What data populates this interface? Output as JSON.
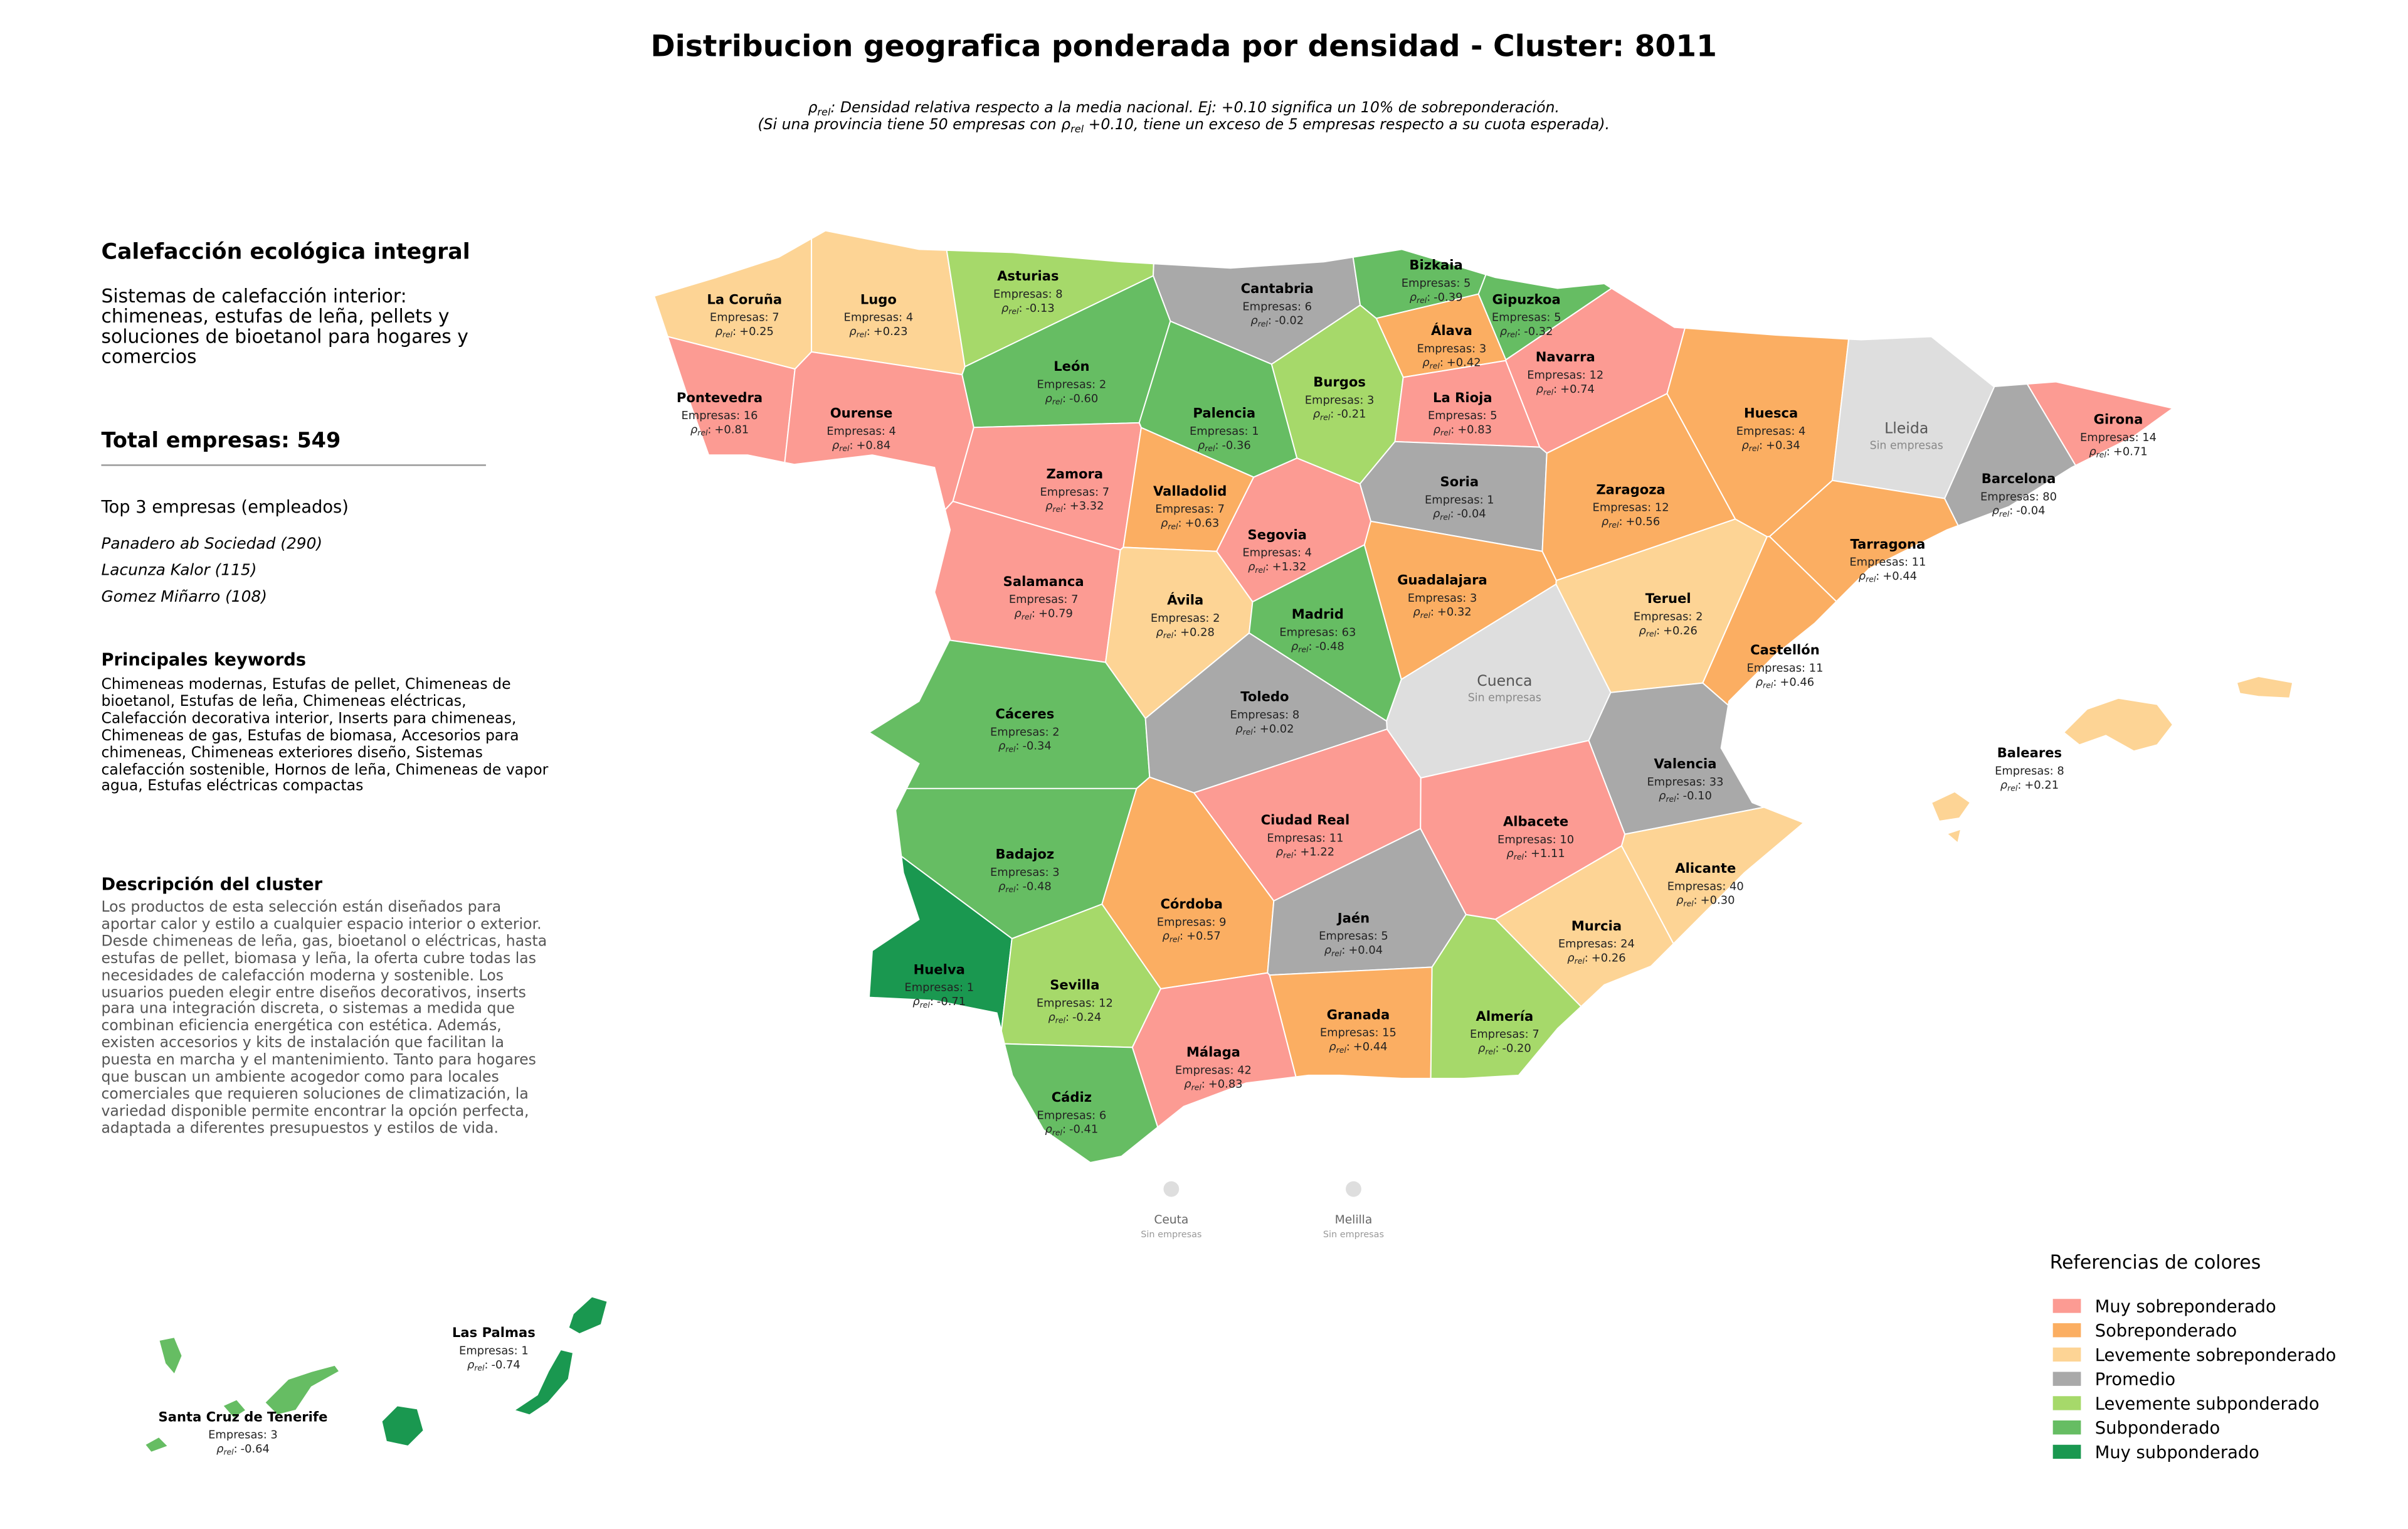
{
  "header": {
    "title": "Distribucion geografica ponderada por densidad - Cluster: 8011",
    "note": {
      "symbol": "ρ",
      "sub": "rel",
      "line1": ": Densidad relativa respecto a la media nacional. Ej: +0.10 significa un 10% de sobreponderación.",
      "line2_start": "(Si una provincia tiene 50 empresas con ",
      "line2_end": " +0.10, tiene un exceso de 5 empresas respecto a su cuota esperada)."
    }
  },
  "sidebar": {
    "title": "Calefacción ecológica integral",
    "summary": "Sistemas de calefacción interior: chimeneas, estufas de leña, pellets y soluciones de bioetanol para hogares y comercios",
    "total": "Total empresas: 549",
    "top_title": "Top 3 empresas (empleados)",
    "top": [
      "Panadero ab Sociedad (290)",
      "Lacunza Kalor (115)",
      "Gomez Miñarro (108)"
    ],
    "keywords_title": "Principales keywords",
    "keywords": "Chimeneas modernas, Estufas de pellet, Chimeneas de bioetanol, Estufas de leña, Chimeneas eléctricas, Calefacción decorativa interior, Inserts para chimeneas, Chimeneas de gas, Estufas de biomasa, Accesorios para chimeneas, Chimeneas exteriores diseño, Sistemas calefacción sostenible, Hornos de leña, Chimeneas de vapor agua, Estufas eléctricas compactas",
    "description_title": "Descripción del cluster",
    "description": "Los productos de esta selección están diseñados para aportar calor y estilo a cualquier espacio interior o exterior. Desde chimeneas de leña, gas, bioetanol o eléctricas, hasta estufas de pellet, biomasa y leña, la oferta cubre todas las necesidades de calefacción moderna y sostenible. Los usuarios pueden elegir entre diseños decorativos, inserts para una integración discreta, o sistemas a medida que combinan eficiencia energética con estética. Además, existen accesorios y kits de instalación que facilitan la puesta en marcha y el mantenimiento. Tanto para hogares que buscan un ambiente acogedor como para locales comerciales que requieren soluciones de climatización, la variedad disponible permite encontrar la opción perfecta, adaptada a diferentes presupuestos y estilos de vida."
  },
  "map": {
    "rho_symbol": "ρ",
    "rho_sub": "rel",
    "rho_sep": ":",
    "no_data": "Sin empresas",
    "no_data_color": "#dedede",
    "provinces": [
      {
        "name": "La Coruña",
        "companies": "Empresas: 7",
        "rho": "+0.25",
        "color": "#fdd495"
      },
      {
        "name": "Lugo",
        "companies": "Empresas: 4",
        "rho": "+0.23",
        "color": "#fdd495"
      },
      {
        "name": "Asturias",
        "companies": "Empresas: 8",
        "rho": "-0.13",
        "color": "#a6d96a"
      },
      {
        "name": "Cantabria",
        "companies": "Empresas: 6",
        "rho": "-0.02",
        "color": "#a9a9a9"
      },
      {
        "name": "Bizkaia",
        "companies": "Empresas: 5",
        "rho": "-0.39",
        "color": "#66bd63"
      },
      {
        "name": "Gipuzkoa",
        "companies": "Empresas: 5",
        "rho": "-0.32",
        "color": "#66bd63"
      },
      {
        "name": "Álava",
        "companies": "Empresas: 3",
        "rho": "+0.42",
        "color": "#fbae62"
      },
      {
        "name": "Navarra",
        "companies": "Empresas: 12",
        "rho": "+0.74",
        "color": "#fc9b93"
      },
      {
        "name": "Pontevedra",
        "companies": "Empresas: 16",
        "rho": "+0.81",
        "color": "#fc9b93"
      },
      {
        "name": "Ourense",
        "companies": "Empresas: 4",
        "rho": "+0.84",
        "color": "#fc9b93"
      },
      {
        "name": "León",
        "companies": "Empresas: 2",
        "rho": "-0.60",
        "color": "#66bd63"
      },
      {
        "name": "Palencia",
        "companies": "Empresas: 1",
        "rho": "-0.36",
        "color": "#66bd63"
      },
      {
        "name": "Burgos",
        "companies": "Empresas: 3",
        "rho": "-0.21",
        "color": "#a6d96a"
      },
      {
        "name": "La Rioja",
        "companies": "Empresas: 5",
        "rho": "+0.83",
        "color": "#fc9b93"
      },
      {
        "name": "Huesca",
        "companies": "Empresas: 4",
        "rho": "+0.34",
        "color": "#fbae62"
      },
      {
        "name": "Girona",
        "companies": "Empresas: 14",
        "rho": "+0.71",
        "color": "#fc9b93"
      },
      {
        "name": "Lleida"
      },
      {
        "name": "Barcelona",
        "companies": "Empresas: 80",
        "rho": "-0.04",
        "color": "#a9a9a9"
      },
      {
        "name": "Zamora",
        "companies": "Empresas: 7",
        "rho": "+3.32",
        "color": "#fc9b93"
      },
      {
        "name": "Valladolid",
        "companies": "Empresas: 7",
        "rho": "+0.63",
        "color": "#fbae62"
      },
      {
        "name": "Soria",
        "companies": "Empresas: 1",
        "rho": "-0.04",
        "color": "#a9a9a9"
      },
      {
        "name": "Zaragoza",
        "companies": "Empresas: 12",
        "rho": "+0.56",
        "color": "#fbae62"
      },
      {
        "name": "Segovia",
        "companies": "Empresas: 4",
        "rho": "+1.32",
        "color": "#fc9b93"
      },
      {
        "name": "Tarragona",
        "companies": "Empresas: 11",
        "rho": "+0.44",
        "color": "#fbae62"
      },
      {
        "name": "Salamanca",
        "companies": "Empresas: 7",
        "rho": "+0.79",
        "color": "#fc9b93"
      },
      {
        "name": "Ávila",
        "companies": "Empresas: 2",
        "rho": "+0.28",
        "color": "#fdd495"
      },
      {
        "name": "Madrid",
        "companies": "Empresas: 63",
        "rho": "-0.48",
        "color": "#66bd63"
      },
      {
        "name": "Guadalajara",
        "companies": "Empresas: 3",
        "rho": "+0.32",
        "color": "#fbae62"
      },
      {
        "name": "Teruel",
        "companies": "Empresas: 2",
        "rho": "+0.26",
        "color": "#fdd495"
      },
      {
        "name": "Castellón",
        "companies": "Empresas: 11",
        "rho": "+0.46",
        "color": "#fbae62"
      },
      {
        "name": "Cuenca"
      },
      {
        "name": "Cáceres",
        "companies": "Empresas: 2",
        "rho": "-0.34",
        "color": "#66bd63"
      },
      {
        "name": "Toledo",
        "companies": "Empresas: 8",
        "rho": "+0.02",
        "color": "#a9a9a9"
      },
      {
        "name": "Valencia",
        "companies": "Empresas: 33",
        "rho": "-0.10",
        "color": "#a9a9a9"
      },
      {
        "name": "Baleares",
        "companies": "Empresas: 8",
        "rho": "+0.21",
        "color": "#fdd495"
      },
      {
        "name": "Ciudad Real",
        "companies": "Empresas: 11",
        "rho": "+1.22",
        "color": "#fc9b93"
      },
      {
        "name": "Albacete",
        "companies": "Empresas: 10",
        "rho": "+1.11",
        "color": "#fc9b93"
      },
      {
        "name": "Badajoz",
        "companies": "Empresas: 3",
        "rho": "-0.48",
        "color": "#66bd63"
      },
      {
        "name": "Alicante",
        "companies": "Empresas: 40",
        "rho": "+0.30",
        "color": "#fdd495"
      },
      {
        "name": "Córdoba",
        "companies": "Empresas: 9",
        "rho": "+0.57",
        "color": "#fbae62"
      },
      {
        "name": "Jaén",
        "companies": "Empresas: 5",
        "rho": "+0.04",
        "color": "#a9a9a9"
      },
      {
        "name": "Murcia",
        "companies": "Empresas: 24",
        "rho": "+0.26",
        "color": "#fdd495"
      },
      {
        "name": "Huelva",
        "companies": "Empresas: 1",
        "rho": "-0.71",
        "color": "#1a9850"
      },
      {
        "name": "Sevilla",
        "companies": "Empresas: 12",
        "rho": "-0.24",
        "color": "#a6d96a"
      },
      {
        "name": "Granada",
        "companies": "Empresas: 15",
        "rho": "+0.44",
        "color": "#fbae62"
      },
      {
        "name": "Almería",
        "companies": "Empresas: 7",
        "rho": "-0.20",
        "color": "#a6d96a"
      },
      {
        "name": "Málaga",
        "companies": "Empresas: 42",
        "rho": "+0.83",
        "color": "#fc9b93"
      },
      {
        "name": "Cádiz",
        "companies": "Empresas: 6",
        "rho": "-0.41",
        "color": "#66bd63"
      },
      {
        "name": "Las Palmas",
        "companies": "Empresas: 1",
        "rho": "-0.74",
        "color": "#1a9850"
      },
      {
        "name": "Santa Cruz de Tenerife",
        "companies": "Empresas: 3",
        "rho": "-0.64",
        "color": "#66bd63"
      }
    ],
    "cities": [
      {
        "name": "Ceuta"
      },
      {
        "name": "Melilla"
      }
    ]
  },
  "legend": {
    "title": "Referencias de colores",
    "categories": [
      {
        "label": "Muy sobreponderado",
        "color": "#fc9b93"
      },
      {
        "label": "Sobreponderado",
        "color": "#fbae62"
      },
      {
        "label": "Levemente sobreponderado",
        "color": "#fdd495"
      },
      {
        "label": "Promedio",
        "color": "#a9a9a9"
      },
      {
        "label": "Levemente subponderado",
        "color": "#a6d96a"
      },
      {
        "label": "Subponderado",
        "color": "#66bd63"
      },
      {
        "label": "Muy subponderado",
        "color": "#1a9850"
      }
    ]
  }
}
